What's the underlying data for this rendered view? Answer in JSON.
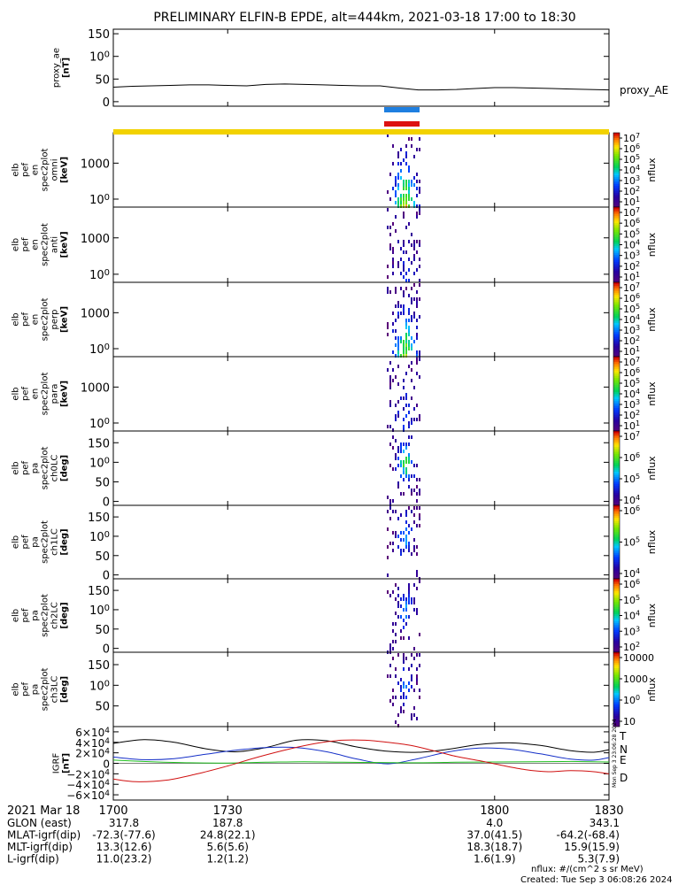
{
  "title": "PRELIMINARY ELFIN-B EPDE, alt=444km, 2021-03-18 17:00 to 18:30",
  "colors": {
    "ae_line": "#000000",
    "bar_blue": "#1f7fe0",
    "bar_red": "#dd1111",
    "bar_yellow": "#f2d200",
    "igrf_T": "#000000",
    "igrf_N": "#1530c8",
    "igrf_E": "#20c020",
    "igrf_D": "#d01010"
  },
  "chart_data": [
    {
      "type": "line",
      "ylabel": "proxy_ae\n[nT]",
      "series_label": "proxy_AE",
      "ylim": [
        -10,
        160
      ],
      "yticks": [
        "0",
        "50",
        "100",
        "150"
      ],
      "ytick_values": [
        0,
        50,
        100,
        150
      ],
      "xlim": [
        1700,
        1830
      ],
      "x": [
        1700,
        1705,
        1710,
        1715,
        1720,
        1725,
        1730,
        1735,
        1740,
        1745,
        1750,
        1755,
        1760,
        1765,
        1770,
        1775,
        1780,
        1785,
        1790,
        1795,
        1800,
        1805,
        1810,
        1815,
        1820,
        1825,
        1830
      ],
      "values": [
        32,
        34,
        35,
        36,
        37,
        37,
        36,
        35,
        38,
        39,
        38,
        37,
        36,
        35,
        35,
        30,
        26,
        26,
        27,
        29,
        31,
        31,
        30,
        29,
        28,
        27,
        26
      ]
    },
    {
      "type": "heatmap",
      "ylabel": "elb\npef\nen\nspec2plot\nomni\n[keV]",
      "yticks": [
        "100",
        "1000"
      ],
      "ytick_values": [
        100,
        1000
      ],
      "yscale": "log",
      "ylim": [
        60,
        7000
      ],
      "colorbar_ticks": [
        "101",
        "102",
        "103",
        "104",
        "105",
        "106",
        "107"
      ],
      "colorbar_label": "nflux",
      "intensity": 1.0,
      "tall": true
    },
    {
      "type": "heatmap",
      "ylabel": "elb\npef\nen\nspec2plot\nanti\n[keV]",
      "yticks": [
        "100",
        "1000"
      ],
      "ytick_values": [
        100,
        1000
      ],
      "yscale": "log",
      "ylim": [
        60,
        7000
      ],
      "colorbar_ticks": [
        "101",
        "102",
        "103",
        "104",
        "105",
        "106",
        "107"
      ],
      "colorbar_label": "nflux",
      "intensity": 0.25,
      "tall": true
    },
    {
      "type": "heatmap",
      "ylabel": "elb\npef\nen\nspec2plot\nperp\n[keV]",
      "yticks": [
        "100",
        "1000"
      ],
      "ytick_values": [
        100,
        1000
      ],
      "yscale": "log",
      "ylim": [
        60,
        7000
      ],
      "colorbar_ticks": [
        "101",
        "102",
        "103",
        "104",
        "105",
        "106",
        "107"
      ],
      "colorbar_label": "nflux",
      "intensity": 0.9,
      "tall": true
    },
    {
      "type": "heatmap",
      "ylabel": "elb\npef\nen\nspec2plot\npara\n[keV]",
      "yticks": [
        "100",
        "1000"
      ],
      "ytick_values": [
        100,
        1000
      ],
      "yscale": "log",
      "ylim": [
        60,
        7000
      ],
      "colorbar_ticks": [
        "101",
        "102",
        "103",
        "104",
        "105",
        "106",
        "107"
      ],
      "colorbar_label": "nflux",
      "intensity": 0.3,
      "tall": true
    },
    {
      "type": "heatmap",
      "ylabel": "elb\npef\npa\nspec2plot\nch0LC\n[deg]",
      "yticks": [
        "0",
        "50",
        "100",
        "150"
      ],
      "ytick_values": [
        0,
        50,
        100,
        150
      ],
      "yscale": "linear",
      "ylim": [
        -10,
        180
      ],
      "colorbar_ticks": [
        "104",
        "105",
        "106",
        "107"
      ],
      "colorbar_label": "nflux",
      "intensity": 0.8,
      "tall": false
    },
    {
      "type": "heatmap",
      "ylabel": "elb\npef\npa\nspec2plot\nch1LC\n[deg]",
      "yticks": [
        "0",
        "50",
        "100",
        "150"
      ],
      "ytick_values": [
        0,
        50,
        100,
        150
      ],
      "yscale": "linear",
      "ylim": [
        -10,
        180
      ],
      "colorbar_ticks": [
        "104",
        "105",
        "106"
      ],
      "colorbar_label": "nflux",
      "intensity": 0.5,
      "tall": false
    },
    {
      "type": "heatmap",
      "ylabel": "elb\npef\npa\nspec2plot\nch2LC\n[deg]",
      "yticks": [
        "0",
        "50",
        "100",
        "150"
      ],
      "ytick_values": [
        0,
        50,
        100,
        150
      ],
      "yscale": "linear",
      "ylim": [
        -10,
        180
      ],
      "colorbar_ticks": [
        "102",
        "103",
        "104",
        "105",
        "106"
      ],
      "colorbar_label": "nflux",
      "intensity": 0.45,
      "tall": false
    },
    {
      "type": "heatmap",
      "ylabel": "elb\npef\npa\nspec2plot\nch3LC\n[deg]",
      "yticks": [
        "50",
        "100",
        "150"
      ],
      "ytick_values": [
        50,
        100,
        150
      ],
      "yscale": "linear",
      "ylim": [
        0,
        180
      ],
      "colorbar_ticks": [
        "10",
        "100",
        "1000",
        "10000"
      ],
      "colorbar_label": "nflux",
      "intensity": 0.4,
      "tall": false
    },
    {
      "type": "line",
      "ylabel": "IGRF\n[nT]",
      "yticks": [
        "−6×104",
        "−4×104",
        "−2×104",
        "0",
        "2×104",
        "4×104",
        "6×104"
      ],
      "ytick_values": [
        -60000,
        -40000,
        -20000,
        0,
        20000,
        40000,
        60000
      ],
      "ylim": [
        -70000,
        70000
      ],
      "xlim": [
        1700,
        1830
      ],
      "series": [
        {
          "name": "T",
          "x": [
            1700,
            1708,
            1716,
            1724,
            1732,
            1740,
            1748,
            1756,
            1764,
            1772,
            1780,
            1788,
            1796,
            1804,
            1812,
            1820,
            1826,
            1830
          ],
          "values": [
            38000,
            45000,
            40000,
            28000,
            22000,
            30000,
            44000,
            43000,
            31000,
            23000,
            21000,
            27000,
            36000,
            39000,
            34000,
            24000,
            21000,
            26000
          ]
        },
        {
          "name": "N",
          "x": [
            1700,
            1708,
            1716,
            1724,
            1732,
            1740,
            1748,
            1756,
            1764,
            1772,
            1780,
            1788,
            1796,
            1804,
            1812,
            1820,
            1826,
            1830
          ],
          "values": [
            12000,
            7000,
            9000,
            17000,
            25000,
            30000,
            30000,
            22000,
            8000,
            -1000,
            9000,
            22000,
            29000,
            27000,
            18000,
            8000,
            6000,
            11000
          ]
        },
        {
          "name": "E",
          "x": [
            1700,
            1710,
            1720,
            1730,
            1740,
            1750,
            1760,
            1770,
            1780,
            1790,
            1800,
            1810,
            1820,
            1830
          ],
          "values": [
            6000,
            3000,
            1000,
            500,
            2000,
            3000,
            2000,
            1500,
            1000,
            2000,
            2500,
            3000,
            3500,
            2500
          ]
        },
        {
          "name": "D",
          "x": [
            1700,
            1706,
            1714,
            1722,
            1730,
            1738,
            1746,
            1754,
            1760,
            1766,
            1772,
            1778,
            1784,
            1790,
            1796,
            1802,
            1808,
            1814,
            1820,
            1826,
            1830
          ],
          "values": [
            -30000,
            -35000,
            -32000,
            -20000,
            -5000,
            12000,
            27000,
            39000,
            44000,
            44000,
            40000,
            34000,
            24000,
            13000,
            5000,
            -4000,
            -12000,
            -16000,
            -14000,
            -16000,
            -20000
          ]
        }
      ]
    }
  ],
  "ephemeris": {
    "date": "2021 Mar 18",
    "x_labels": [
      "1700",
      "1730",
      "1800",
      "1830"
    ],
    "rows": [
      {
        "label": "GLON (east)",
        "values": [
          "317.8",
          "187.8",
          "4.0",
          "343.1"
        ]
      },
      {
        "label": "MLAT-igrf(dip)",
        "values": [
          "-72.3(-77.6)",
          "24.8(22.1)",
          "37.0(41.5)",
          "-64.2(-68.4)"
        ]
      },
      {
        "label": "MLT-igrf(dip)",
        "values": [
          "13.3(12.6)",
          "5.6(5.6)",
          "18.3(18.7)",
          "15.9(15.9)"
        ]
      },
      {
        "label": "L-igrf(dip)",
        "values": [
          "11.0(23.2)",
          "1.2(1.2)",
          "1.6(1.9)",
          "5.3(7.9)"
        ]
      }
    ]
  },
  "footer": {
    "units": "nflux: #/(cm^2 s sr MeV)",
    "created": "Created: Tue Sep  3 06:08:26 2024",
    "side_stamp": "Mon Sep  3 23:06:28 2024"
  }
}
